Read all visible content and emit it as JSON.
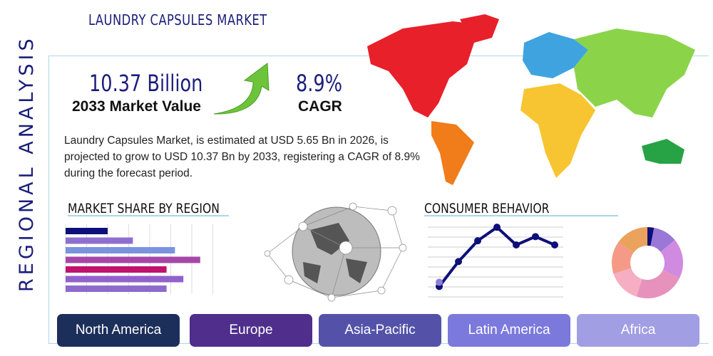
{
  "header": {
    "title": "LAUNDRY CAPSULES MARKET",
    "side_title": "REGIONAL ANALYSIS"
  },
  "stats": {
    "market_value": "10.37 Billion",
    "market_value_label": "2033 Market Value",
    "cagr": "8.9%",
    "cagr_label": "CAGR"
  },
  "description": "Laundry Capsules Market, is estimated at USD 5.65 Bn in 2026, is projected to grow to USD 10.37 Bn by 2033, registering a CAGR of 8.9% during the forecast period.",
  "sections": {
    "market_share": "MARKET SHARE BY REGION",
    "consumer": "CONSUMER BEHAVIOR"
  },
  "regions": [
    {
      "label": "North America",
      "color": "#1c2f5a"
    },
    {
      "label": "Europe",
      "color": "#4f2e8c"
    },
    {
      "label": "Asia-Pacific",
      "color": "#5452a8"
    },
    {
      "label": "Latin America",
      "color": "#7b79dc"
    },
    {
      "label": "Africa",
      "color": "#a19ee4"
    }
  ],
  "map_colors": {
    "north_america": "#e8202a",
    "south_america": "#f07c1a",
    "europe": "#3fa3e0",
    "asia": "#8bd44a",
    "africa": "#f7c531",
    "oceania": "#27a345"
  },
  "chart_data": [
    {
      "type": "bar",
      "orientation": "horizontal",
      "values": [
        2,
        3.2,
        5.2,
        6.4,
        4.8,
        5.6,
        4.8
      ],
      "colors": [
        "#0d0f7a",
        "#8e6fd0",
        "#7b93de",
        "#a647a8",
        "#c1126d",
        "#9262cc",
        "#8d6acb"
      ],
      "grid": true
    },
    {
      "type": "line",
      "values": [
        1,
        3.4,
        5.4,
        6.7,
        5,
        5.8,
        5
      ],
      "color": "#0d0f7a",
      "grid": true
    },
    {
      "type": "pie",
      "donut": true,
      "values": [
        3,
        11,
        18,
        23,
        15,
        15,
        15
      ],
      "colors": [
        "#0d0f7a",
        "#9a78d8",
        "#d08ae0",
        "#e791bd",
        "#f6aec2",
        "#f49a86",
        "#eaa25c"
      ]
    }
  ]
}
